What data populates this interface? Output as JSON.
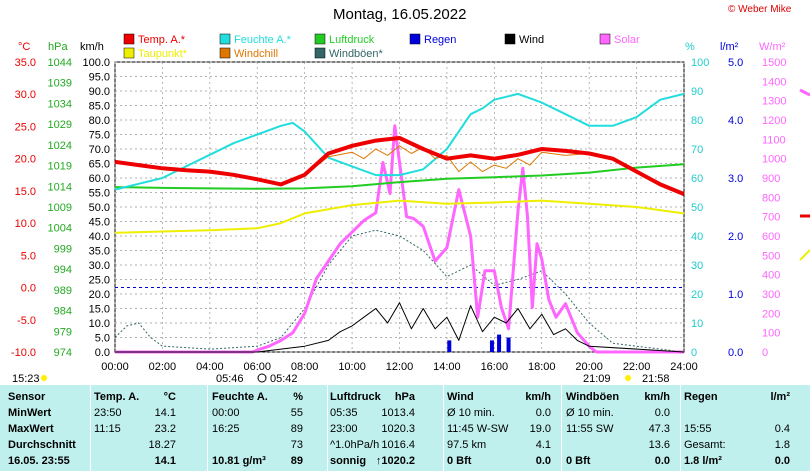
{
  "title": "Montag, 16.05.2022",
  "copyright": "© Weber Mike",
  "colors": {
    "temp": "#ee0000",
    "humidity": "#22dddd",
    "pressure": "#22cc22",
    "rain": "#0000dd",
    "wind": "#000000",
    "solar": "#ff66ff",
    "dewpoint": "#eeee00",
    "windchill": "#dd7700",
    "gust": "#336666",
    "table_bg": "#bff0ee"
  },
  "legend": [
    {
      "label": "Temp. A.*",
      "color": "#ee0000"
    },
    {
      "label": "Feuchte A.*",
      "color": "#22dddd"
    },
    {
      "label": "Luftdruck",
      "color": "#22cc22"
    },
    {
      "label": "Regen",
      "color": "#0000dd"
    },
    {
      "label": "Wind",
      "color": "#000000"
    },
    {
      "label": "Solar",
      "color": "#ff66ff"
    },
    {
      "label": "Taupunkt*",
      "color": "#eeee00"
    },
    {
      "label": "Windchill",
      "color": "#dd7700"
    },
    {
      "label": "Windböen*",
      "color": "#336666"
    }
  ],
  "axis_units": {
    "temp": "°C",
    "pressure": "hPa",
    "wind": "km/h",
    "humidity": "%",
    "rain": "l/m²",
    "solar": "W/m²"
  },
  "sun": {
    "sunrise": "05:46",
    "sunset": "21:09",
    "moonrise": "05:42",
    "moonset": "21:58",
    "time_now": "15:23"
  },
  "chart_data": {
    "type": "line",
    "x_ticks": [
      "00:00",
      "02:00",
      "04:00",
      "06:00",
      "08:00",
      "10:00",
      "12:00",
      "14:00",
      "16:00",
      "18:00",
      "20:00",
      "22:00",
      "24:00"
    ],
    "axes": {
      "temp": {
        "unit": "°C",
        "range": [
          -10,
          35
        ],
        "ticks": [
          "35.0",
          "30.0",
          "25.0",
          "20.0",
          "15.0",
          "10.0",
          "5.0",
          "0.0",
          "-5.0",
          "-10.0"
        ]
      },
      "pressure": {
        "unit": "hPa",
        "range": [
          974,
          1044
        ],
        "ticks": [
          "1044",
          "1039",
          "1034",
          "1029",
          "1024",
          "1019",
          "1014",
          "1009",
          "1004",
          "999",
          "994",
          "989",
          "984",
          "979",
          "974"
        ]
      },
      "wind": {
        "unit": "km/h",
        "range": [
          0,
          100
        ],
        "ticks": [
          "100.0",
          "95.0",
          "90.0",
          "85.0",
          "80.0",
          "75.0",
          "70.0",
          "65.0",
          "60.0",
          "55.0",
          "50.0",
          "45.0",
          "40.0",
          "35.0",
          "30.0",
          "25.0",
          "20.0",
          "15.0",
          "10.0",
          "5.0",
          "0.0"
        ]
      },
      "humidity": {
        "unit": "%",
        "range": [
          0,
          100
        ],
        "ticks": [
          "100",
          "90",
          "80",
          "70",
          "60",
          "50",
          "40",
          "30",
          "20",
          "10",
          "0"
        ]
      },
      "rain": {
        "unit": "l/m²",
        "range": [
          0,
          5
        ],
        "ticks": [
          "5.0",
          "4.0",
          "3.0",
          "2.0",
          "1.0",
          "0.0"
        ]
      },
      "solar": {
        "unit": "W/m²",
        "range": [
          0,
          1500
        ],
        "ticks": [
          "1500",
          "1400",
          "1300",
          "1200",
          "1100",
          "1000",
          "900",
          "800",
          "700",
          "600",
          "500",
          "400",
          "300",
          "200",
          "100",
          "0"
        ]
      }
    },
    "series": [
      {
        "name": "Temp. A.*",
        "axis": "temp",
        "x": [
          0,
          1,
          2,
          3,
          4,
          5,
          6,
          7,
          8,
          9,
          10,
          11,
          12,
          13,
          14,
          15,
          16,
          17,
          18,
          19,
          20,
          21,
          22,
          23,
          24
        ],
        "y": [
          19.5,
          19.0,
          18.5,
          18.2,
          18.0,
          17.5,
          16.8,
          16.0,
          17.5,
          20.8,
          22.0,
          22.8,
          23.2,
          21.5,
          20.0,
          20.5,
          20.0,
          20.6,
          21.5,
          21.2,
          20.8,
          20.0,
          18.0,
          16.0,
          14.5
        ]
      },
      {
        "name": "Feuchte A.*",
        "axis": "humidity",
        "x": [
          0,
          1,
          2,
          3,
          4,
          5,
          6,
          7,
          7.5,
          8,
          9,
          10,
          11,
          12,
          13,
          14,
          15,
          15.5,
          16,
          17,
          18,
          19,
          20,
          21,
          22,
          23,
          24
        ],
        "y": [
          56,
          58,
          60,
          64,
          68,
          72,
          75,
          78,
          79,
          76,
          67,
          64,
          61,
          61,
          63,
          70,
          82,
          84,
          87,
          89,
          86,
          82,
          78,
          78,
          81,
          87,
          89
        ]
      },
      {
        "name": "Luftdruck",
        "axis": "pressure",
        "x": [
          0,
          2,
          4,
          6,
          8,
          10,
          12,
          14,
          16,
          18,
          20,
          22,
          24
        ],
        "y": [
          1013.8,
          1013.6,
          1013.5,
          1013.4,
          1013.5,
          1014.0,
          1015.0,
          1015.8,
          1016.2,
          1016.6,
          1017.3,
          1018.5,
          1019.3
        ]
      },
      {
        "name": "Taupunkt*",
        "axis": "temp",
        "x": [
          0,
          2,
          4,
          6,
          7,
          8,
          10,
          12,
          14,
          16,
          18,
          20,
          22,
          24
        ],
        "y": [
          8.5,
          8.7,
          8.9,
          9.2,
          10.0,
          11.5,
          12.8,
          13.5,
          13.0,
          13.2,
          13.5,
          13.0,
          12.5,
          11.5
        ]
      },
      {
        "name": "Windchill",
        "axis": "temp",
        "x": [
          6,
          7,
          8,
          9,
          10,
          10.5,
          11,
          11.5,
          12,
          12.5,
          13,
          13.5,
          14,
          14.5,
          15,
          15.5,
          16,
          16.5,
          17,
          17.5,
          18,
          19,
          20
        ],
        "y": [
          16.8,
          16.0,
          17.5,
          20.3,
          21.0,
          20.0,
          21.5,
          20.5,
          22.0,
          20.8,
          21.8,
          20.0,
          20.5,
          18.0,
          19.5,
          18.0,
          19.0,
          18.5,
          20.0,
          19.0,
          21.0,
          20.5,
          20.8
        ]
      },
      {
        "name": "Wind",
        "axis": "wind",
        "x": [
          0,
          6,
          7,
          8,
          9,
          9.5,
          10,
          10.5,
          11,
          11.5,
          12,
          12.5,
          13,
          13.5,
          14,
          14.5,
          15,
          15.5,
          16,
          16.5,
          17,
          17.5,
          18,
          18.5,
          19,
          19.5,
          20,
          24
        ],
        "y": [
          0,
          0,
          1,
          2,
          4,
          7,
          9,
          12,
          15,
          10,
          17,
          8,
          15,
          8,
          12,
          4,
          16,
          7,
          12,
          10,
          15,
          8,
          13,
          6,
          8,
          4,
          2,
          0
        ]
      },
      {
        "name": "Windböen*",
        "axis": "wind",
        "x": [
          0,
          0.5,
          1,
          1.5,
          2,
          4,
          6,
          7,
          8,
          9,
          10,
          11,
          12,
          13,
          14,
          15,
          16,
          17,
          18,
          19,
          20,
          21,
          24
        ],
        "y": [
          5,
          9,
          10,
          5,
          2,
          1,
          2,
          5,
          15,
          30,
          40,
          42,
          40,
          35,
          26,
          30,
          23,
          25,
          28,
          20,
          10,
          3,
          0
        ]
      },
      {
        "name": "Solar",
        "axis": "solar",
        "x": [
          0,
          5.8,
          6,
          6.5,
          7,
          7.5,
          8,
          8.5,
          9,
          9.5,
          10,
          10.5,
          11,
          11.3,
          11.6,
          11.8,
          12,
          12.3,
          12.6,
          13,
          13.5,
          14,
          14.5,
          15,
          15.3,
          15.6,
          16,
          16.3,
          16.6,
          17,
          17.2,
          17.4,
          17.6,
          17.8,
          18,
          18.3,
          18.6,
          19,
          19.5,
          20,
          20.3,
          24
        ],
        "y": [
          0,
          0,
          10,
          30,
          60,
          100,
          200,
          380,
          470,
          560,
          620,
          680,
          720,
          980,
          820,
          1170,
          980,
          700,
          690,
          650,
          470,
          540,
          840,
          600,
          180,
          420,
          420,
          230,
          120,
          730,
          950,
          700,
          230,
          560,
          480,
          270,
          180,
          250,
          100,
          30,
          0,
          0
        ]
      },
      {
        "name": "Regen",
        "axis": "rain",
        "x": [
          0,
          13.9,
          14.1,
          15.9,
          16.2,
          16.6,
          24
        ],
        "y": [
          0,
          0,
          0.2,
          0.2,
          0.3,
          0.25,
          0
        ]
      }
    ]
  },
  "table": {
    "headers": [
      "Sensor",
      "Temp. A.",
      "°C",
      "Feuchte A.",
      "%",
      "Luftdruck",
      "hPa",
      "Wind",
      "km/h",
      "Windböen",
      "km/h",
      "Regen",
      "l/m²"
    ],
    "rows": [
      [
        "MinWert",
        "23:50",
        "14.1",
        "00:00",
        "55",
        "05:35",
        "1013.4",
        "Ø 10 min.",
        "0.0",
        "Ø 10 min.",
        "0.0",
        "",
        ""
      ],
      [
        "MaxWert",
        "11:15",
        "23.2",
        "16:25",
        "89",
        "23:00",
        "1020.3",
        "11:45   W-SW",
        "19.0",
        "11:55   SW",
        "47.3",
        "15:55",
        "0.4"
      ],
      [
        "Durchschnitt",
        "",
        "18.27",
        "",
        "73",
        "^1.0hPa/h",
        "1016.4",
        "97.5 km",
        "4.1",
        "",
        "13.6",
        "Gesamt:",
        "1.8"
      ],
      [
        "16.05.  23:55",
        "",
        "14.1",
        "10.81 g/m³",
        "89",
        "sonnig",
        "↑1020.2",
        "0 Bft",
        "0.0",
        "0 Bft",
        "0.0",
        "1.8 l/m²",
        "0.0"
      ]
    ]
  }
}
